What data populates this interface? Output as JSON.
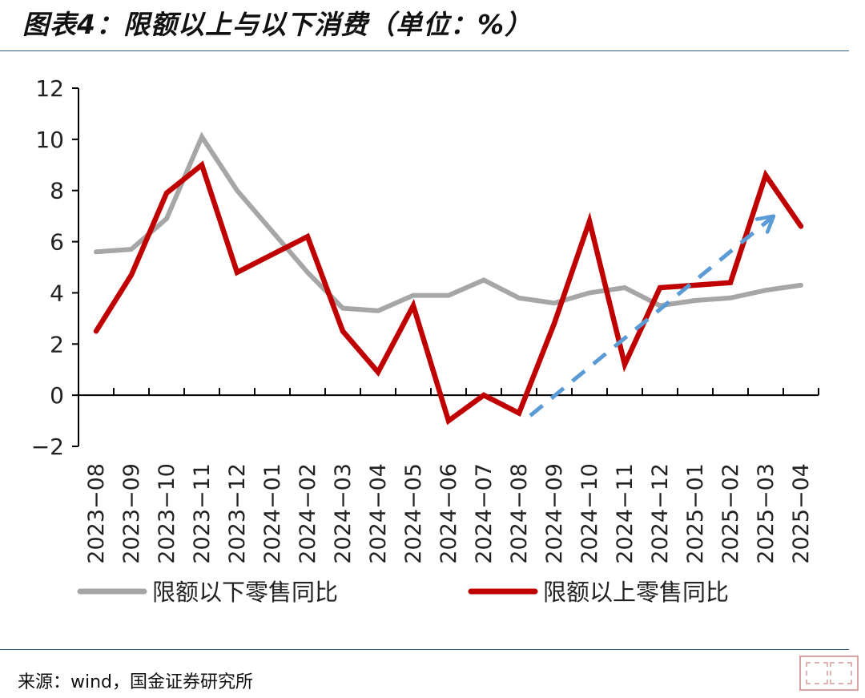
{
  "title": "图表4：限额以上与以下消费（单位：%）",
  "source": "来源：wind，国金证券研究所",
  "chart_data": {
    "type": "line",
    "title": "图表4：限额以上与以下消费（单位：%）",
    "xlabel": "",
    "ylabel": "",
    "ylim": [
      -2,
      12
    ],
    "yticks": [
      -2,
      0,
      2,
      4,
      6,
      8,
      10,
      12
    ],
    "ytick_labels": [
      "−2",
      "0",
      "2",
      "4",
      "6",
      "8",
      "10",
      "12"
    ],
    "grid": false,
    "legend_position": "bottom",
    "x": [
      "2023-08",
      "2023-09",
      "2023-10",
      "2023-11",
      "2023-12",
      "2024-01",
      "2024-02",
      "2024-03",
      "2024-04",
      "2024-05",
      "2024-06",
      "2024-07",
      "2024-08",
      "2024-09",
      "2024-10",
      "2024-11",
      "2024-12",
      "2025-01",
      "2025-02",
      "2025-03",
      "2025-04"
    ],
    "x_tick_labels": [
      "2023−08",
      "2023−09",
      "2023−10",
      "2023−11",
      "2023−12",
      "2024−01",
      "2024−02",
      "2024−03",
      "2024−04",
      "2024−05",
      "2024−06",
      "2024−07",
      "2024−08",
      "2024−09",
      "2024−10",
      "2024−11",
      "2024−12",
      "2025−01",
      "2025−02",
      "2025−03",
      "2025−04"
    ],
    "series": [
      {
        "name": "限额以下零售同比",
        "color": "#a6a6a6",
        "values": [
          5.6,
          5.7,
          6.9,
          10.1,
          8.0,
          6.4,
          4.8,
          3.4,
          3.3,
          3.9,
          3.9,
          4.5,
          3.8,
          3.6,
          4.0,
          4.2,
          3.5,
          3.7,
          3.8,
          4.1,
          4.3
        ]
      },
      {
        "name": "限额以上零售同比",
        "color": "#c00000",
        "values": [
          2.5,
          4.7,
          7.9,
          9.0,
          4.8,
          5.5,
          6.2,
          2.5,
          0.9,
          3.5,
          -1.0,
          0.0,
          -0.7,
          2.8,
          6.8,
          1.2,
          4.2,
          4.3,
          4.4,
          8.6,
          6.6
        ]
      }
    ],
    "annotations": [
      {
        "type": "dashed-arrow",
        "color": "#5b9bd5",
        "from": {
          "x": "2024-08",
          "y": -0.8
        },
        "to": {
          "x": "2025-03",
          "y": 7.0
        }
      }
    ]
  }
}
